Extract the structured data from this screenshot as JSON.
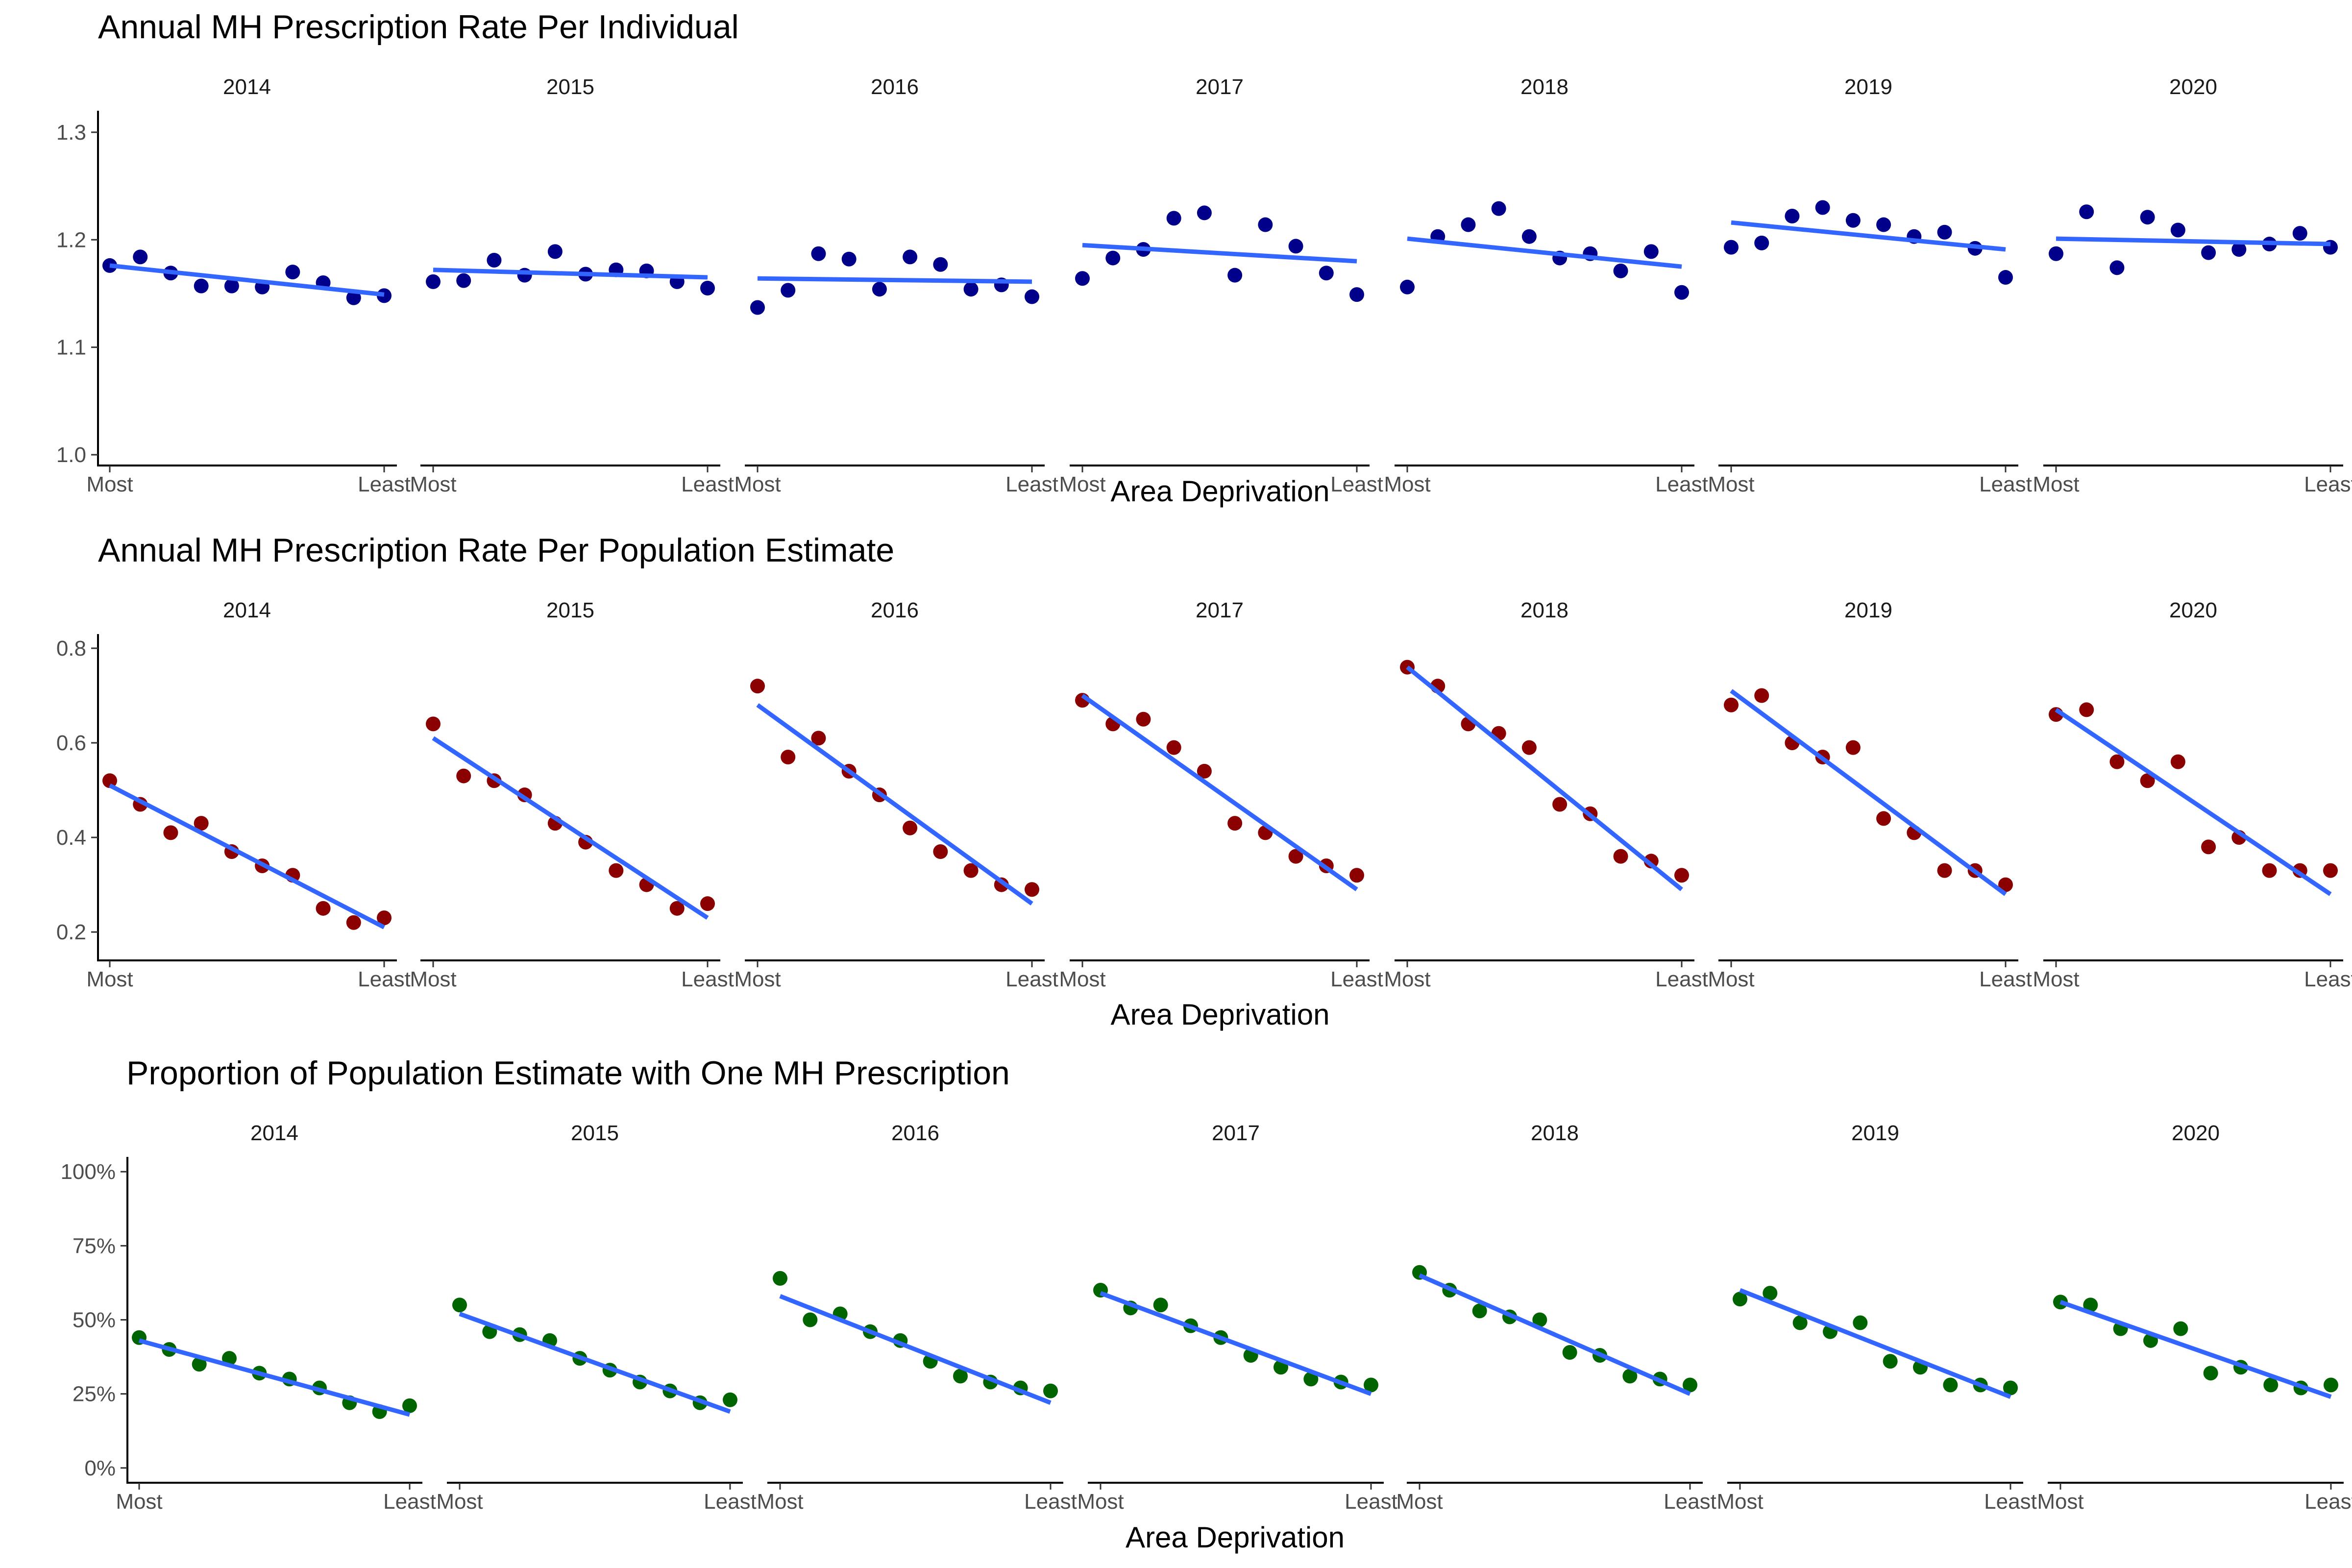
{
  "chart_data": [
    {
      "type": "scatter",
      "title": "Annual MH Prescription Rate Per Individual",
      "xlabel": "Area Deprivation",
      "ylabel": "",
      "x_tick_labels": [
        "Most",
        "Least"
      ],
      "ylim": [
        0.99,
        1.32
      ],
      "y_ticks": [
        1.0,
        1.1,
        1.2,
        1.3
      ],
      "y_tick_labels": [
        "1.0",
        "1.1",
        "1.2",
        "1.3"
      ],
      "point_color": "#00008B",
      "line_color": "#3366FF",
      "grid": false,
      "facets": [
        {
          "label": "2014",
          "values": [
            1.176,
            1.184,
            1.169,
            1.157,
            1.157,
            1.156,
            1.17,
            1.16,
            1.146,
            1.148
          ],
          "fit": [
            1.176,
            1.149
          ]
        },
        {
          "label": "2015",
          "values": [
            1.161,
            1.162,
            1.181,
            1.167,
            1.189,
            1.168,
            1.172,
            1.171,
            1.161,
            1.155
          ],
          "fit": [
            1.172,
            1.165
          ]
        },
        {
          "label": "2016",
          "values": [
            1.137,
            1.153,
            1.187,
            1.182,
            1.154,
            1.184,
            1.177,
            1.154,
            1.158,
            1.147
          ],
          "fit": [
            1.164,
            1.161
          ]
        },
        {
          "label": "2017",
          "values": [
            1.164,
            1.183,
            1.191,
            1.22,
            1.225,
            1.167,
            1.214,
            1.194,
            1.169,
            1.149
          ],
          "fit": [
            1.195,
            1.18
          ]
        },
        {
          "label": "2018",
          "values": [
            1.156,
            1.203,
            1.214,
            1.229,
            1.203,
            1.183,
            1.187,
            1.171,
            1.189,
            1.151
          ],
          "fit": [
            1.201,
            1.175
          ]
        },
        {
          "label": "2019",
          "values": [
            1.193,
            1.197,
            1.222,
            1.23,
            1.218,
            1.214,
            1.203,
            1.207,
            1.192,
            1.165
          ],
          "fit": [
            1.216,
            1.191
          ]
        },
        {
          "label": "2020",
          "values": [
            1.187,
            1.226,
            1.174,
            1.221,
            1.209,
            1.188,
            1.191,
            1.196,
            1.206,
            1.193
          ],
          "fit": [
            1.201,
            1.196
          ]
        }
      ]
    },
    {
      "type": "scatter",
      "title": "Annual MH Prescription Rate Per Population Estimate",
      "xlabel": "Area Deprivation",
      "ylabel": "",
      "x_tick_labels": [
        "Most",
        "Least"
      ],
      "ylim": [
        0.14,
        0.83
      ],
      "y_ticks": [
        0.2,
        0.4,
        0.6,
        0.8
      ],
      "y_tick_labels": [
        "0.2",
        "0.4",
        "0.6",
        "0.8"
      ],
      "point_color": "#8B0000",
      "line_color": "#3366FF",
      "grid": false,
      "facets": [
        {
          "label": "2014",
          "values": [
            0.52,
            0.47,
            0.41,
            0.43,
            0.37,
            0.34,
            0.32,
            0.25,
            0.22,
            0.23
          ],
          "fit": [
            0.51,
            0.21
          ]
        },
        {
          "label": "2015",
          "values": [
            0.64,
            0.53,
            0.52,
            0.49,
            0.43,
            0.39,
            0.33,
            0.3,
            0.25,
            0.26
          ],
          "fit": [
            0.61,
            0.23
          ]
        },
        {
          "label": "2016",
          "values": [
            0.72,
            0.57,
            0.61,
            0.54,
            0.49,
            0.42,
            0.37,
            0.33,
            0.3,
            0.29
          ],
          "fit": [
            0.68,
            0.26
          ]
        },
        {
          "label": "2017",
          "values": [
            0.69,
            0.64,
            0.65,
            0.59,
            0.54,
            0.43,
            0.41,
            0.36,
            0.34,
            0.32
          ],
          "fit": [
            0.7,
            0.29
          ]
        },
        {
          "label": "2018",
          "values": [
            0.76,
            0.72,
            0.64,
            0.62,
            0.59,
            0.47,
            0.45,
            0.36,
            0.35,
            0.32
          ],
          "fit": [
            0.76,
            0.29
          ]
        },
        {
          "label": "2019",
          "values": [
            0.68,
            0.7,
            0.6,
            0.57,
            0.59,
            0.44,
            0.41,
            0.33,
            0.33,
            0.3
          ],
          "fit": [
            0.71,
            0.28
          ]
        },
        {
          "label": "2020",
          "values": [
            0.66,
            0.67,
            0.56,
            0.52,
            0.56,
            0.38,
            0.4,
            0.33,
            0.33,
            0.33
          ],
          "fit": [
            0.67,
            0.28
          ]
        }
      ]
    },
    {
      "type": "scatter",
      "title": "Proportion of Population Estimate with One MH Prescription",
      "xlabel": "Area Deprivation",
      "ylabel": "",
      "x_tick_labels": [
        "Most",
        "Least"
      ],
      "ylim": [
        -0.05,
        1.05
      ],
      "y_ticks": [
        0,
        0.25,
        0.5,
        0.75,
        1.0
      ],
      "y_tick_labels": [
        "0%",
        "25%",
        "50%",
        "75%",
        "100%"
      ],
      "point_color": "#006400",
      "line_color": "#3366FF",
      "grid": false,
      "facets": [
        {
          "label": "2014",
          "values": [
            0.44,
            0.4,
            0.35,
            0.37,
            0.32,
            0.3,
            0.27,
            0.22,
            0.19,
            0.21
          ],
          "fit": [
            0.43,
            0.18
          ]
        },
        {
          "label": "2015",
          "values": [
            0.55,
            0.46,
            0.45,
            0.43,
            0.37,
            0.33,
            0.29,
            0.26,
            0.22,
            0.23
          ],
          "fit": [
            0.52,
            0.19
          ]
        },
        {
          "label": "2016",
          "values": [
            0.64,
            0.5,
            0.52,
            0.46,
            0.43,
            0.36,
            0.31,
            0.29,
            0.27,
            0.26
          ],
          "fit": [
            0.58,
            0.22
          ]
        },
        {
          "label": "2017",
          "values": [
            0.6,
            0.54,
            0.55,
            0.48,
            0.44,
            0.38,
            0.34,
            0.3,
            0.29,
            0.28
          ],
          "fit": [
            0.59,
            0.25
          ]
        },
        {
          "label": "2018",
          "values": [
            0.66,
            0.6,
            0.53,
            0.51,
            0.5,
            0.39,
            0.38,
            0.31,
            0.3,
            0.28
          ],
          "fit": [
            0.65,
            0.25
          ]
        },
        {
          "label": "2019",
          "values": [
            0.57,
            0.59,
            0.49,
            0.46,
            0.49,
            0.36,
            0.34,
            0.28,
            0.28,
            0.27
          ],
          "fit": [
            0.6,
            0.24
          ]
        },
        {
          "label": "2020",
          "values": [
            0.56,
            0.55,
            0.47,
            0.43,
            0.47,
            0.32,
            0.34,
            0.28,
            0.27,
            0.28
          ],
          "fit": [
            0.56,
            0.24
          ]
        }
      ]
    }
  ]
}
